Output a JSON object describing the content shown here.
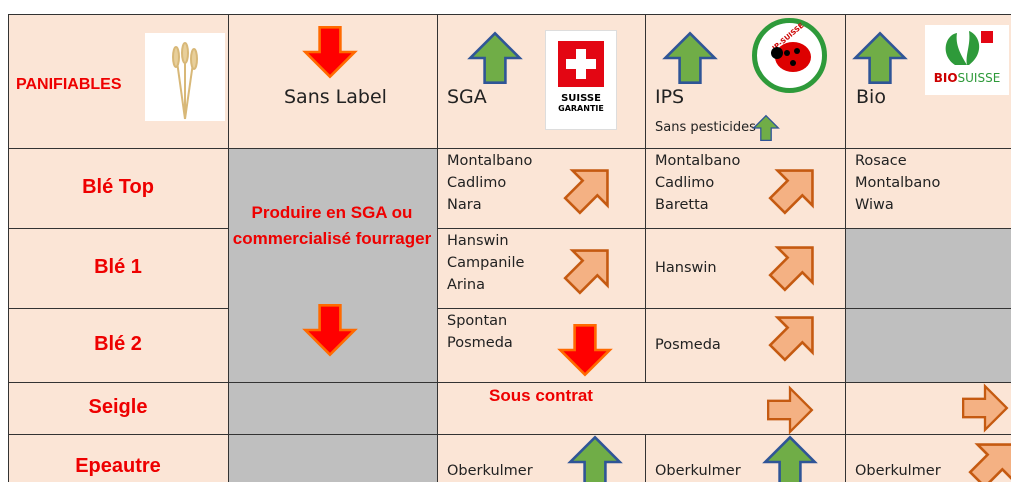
{
  "header": {
    "title": "PANIFIABLES",
    "columns": [
      "Sans Label",
      "SGA",
      "IPS",
      "Bio"
    ],
    "ips_subtitle": "Sans pesticides",
    "logos": {
      "sga": [
        "SUISSE",
        "GARANTIE"
      ],
      "bio": [
        "BIO",
        "SUISSE"
      ],
      "ips": "IP-SUISSE"
    }
  },
  "rows": [
    {
      "name": "Blé Top",
      "sga": [
        "Montalbano",
        "Cadlimo",
        "Nara"
      ],
      "ips": [
        "Montalbano",
        "Cadlimo",
        "Baretta"
      ],
      "bio": [
        "Rosace",
        "Montalbano",
        "Wiwa"
      ]
    },
    {
      "name": "Blé 1",
      "sga": [
        "Hanswin",
        "Campanile",
        "Arina"
      ],
      "ips": [
        "Hanswin"
      ]
    },
    {
      "name": "Blé 2",
      "sga": [
        "Spontan",
        "Posmeda"
      ],
      "ips": [
        "Posmeda"
      ]
    },
    {
      "name": "Seigle",
      "sga_note": "Sous contrat"
    },
    {
      "name": "Epeautre",
      "sga": [
        "Oberkulmer"
      ],
      "ips": [
        "Oberkulmer"
      ],
      "bio": [
        "Oberkulmer"
      ]
    }
  ],
  "sans_label_note": "Produire en SGA ou commercialisé fourrager"
}
